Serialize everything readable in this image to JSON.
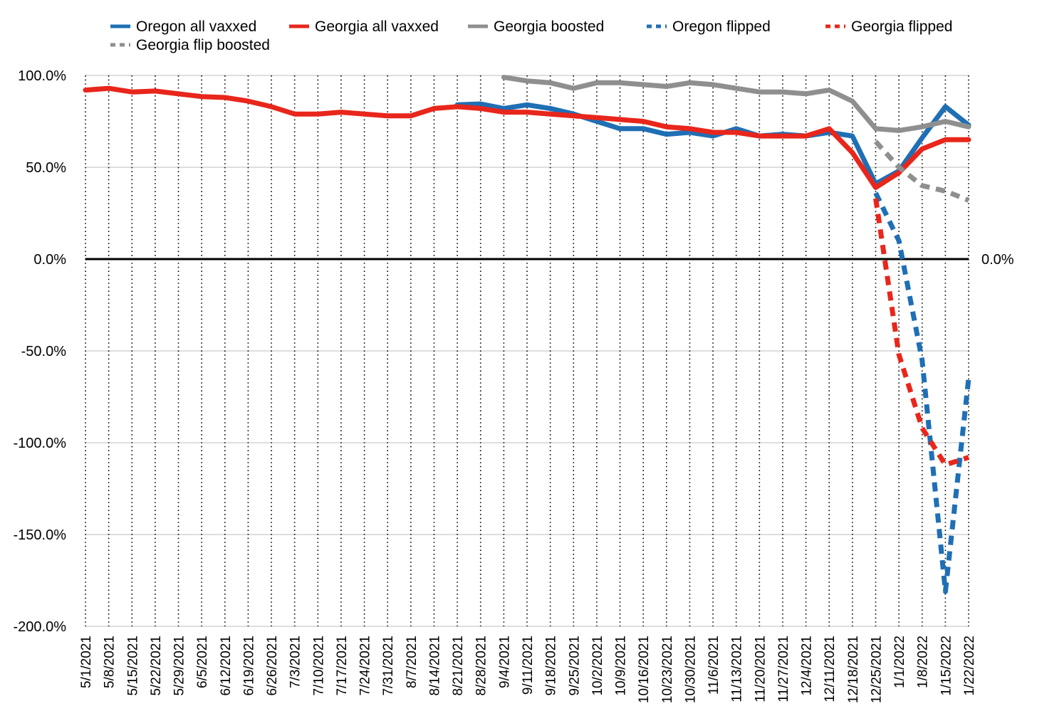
{
  "chart_data": {
    "type": "line",
    "title": "",
    "xlabel": "",
    "ylabel": "",
    "ylim": [
      -200,
      100
    ],
    "yticks": [
      100,
      50,
      0,
      -50,
      -100,
      -150,
      -200
    ],
    "ytick_labels": [
      "100.0%",
      "50.0%",
      "0.0%",
      "-50.0%",
      "-100.0%",
      "-150.0%",
      "-200.0%"
    ],
    "zero_right_label": "0.0%",
    "grid": {
      "horizontal": true,
      "vertical": "dotted"
    },
    "legend_position": "top",
    "x": [
      "5/1/2021",
      "5/8/2021",
      "5/15/2021",
      "5/22/2021",
      "5/29/2021",
      "6/5/2021",
      "6/12/2021",
      "6/19/2021",
      "6/26/2021",
      "7/3/2021",
      "7/10/2021",
      "7/17/2021",
      "7/24/2021",
      "7/31/2021",
      "8/7/2021",
      "8/14/2021",
      "8/21/2021",
      "8/28/2021",
      "9/4/2021",
      "9/11/2021",
      "9/18/2021",
      "9/25/2021",
      "10/2/2021",
      "10/9/2021",
      "10/16/2021",
      "10/23/2021",
      "10/30/2021",
      "11/6/2021",
      "11/13/2021",
      "11/20/2021",
      "11/27/2021",
      "12/4/2021",
      "12/11/2021",
      "12/18/2021",
      "12/25/2021",
      "1/1/2022",
      "1/8/2022",
      "1/15/2022",
      "1/22/2022"
    ],
    "series": [
      {
        "name": "Oregon all vaxxed",
        "color": "#1f6fb5",
        "dash": false,
        "values": [
          null,
          null,
          null,
          null,
          null,
          null,
          null,
          null,
          null,
          null,
          null,
          null,
          null,
          null,
          null,
          null,
          84,
          84.5,
          82,
          84,
          82,
          79,
          75,
          71,
          71,
          68,
          69,
          67,
          71,
          67,
          68,
          67,
          69,
          67,
          41,
          48,
          66,
          83,
          73
        ]
      },
      {
        "name": "Georgia all vaxxed",
        "color": "#e8261b",
        "dash": false,
        "values": [
          92,
          93,
          91,
          91.5,
          90,
          88.5,
          88,
          86,
          83,
          79,
          79,
          80,
          79,
          78,
          78,
          82,
          83,
          82,
          80,
          80,
          79,
          78,
          77,
          76,
          75,
          72,
          71,
          69,
          69,
          67,
          67,
          67,
          71,
          58,
          39,
          47,
          60,
          65,
          65
        ]
      },
      {
        "name": "Georgia boosted",
        "color": "#8f8f8f",
        "dash": false,
        "values": [
          null,
          null,
          null,
          null,
          null,
          null,
          null,
          null,
          null,
          null,
          null,
          null,
          null,
          null,
          null,
          null,
          null,
          null,
          99,
          97,
          96,
          93,
          96,
          96,
          95,
          94,
          96,
          95,
          93,
          91,
          91,
          90,
          92,
          86,
          71,
          70,
          72,
          75,
          72
        ]
      },
      {
        "name": "Oregon flipped",
        "color": "#1f6fb5",
        "dash": true,
        "values": [
          null,
          null,
          null,
          null,
          null,
          null,
          null,
          null,
          null,
          null,
          null,
          null,
          null,
          null,
          null,
          null,
          null,
          null,
          null,
          null,
          null,
          null,
          null,
          null,
          null,
          null,
          null,
          null,
          null,
          null,
          null,
          null,
          null,
          null,
          36,
          10,
          -55,
          -181,
          -65
        ]
      },
      {
        "name": "Georgia flipped",
        "color": "#e8261b",
        "dash": true,
        "values": [
          null,
          null,
          null,
          null,
          null,
          null,
          null,
          null,
          null,
          null,
          null,
          null,
          null,
          null,
          null,
          null,
          null,
          null,
          null,
          null,
          null,
          null,
          null,
          null,
          null,
          null,
          null,
          null,
          null,
          null,
          null,
          null,
          null,
          null,
          33,
          -52,
          -92,
          -112,
          -108
        ]
      },
      {
        "name": "Georgia flip boosted",
        "color": "#8f8f8f",
        "dash": true,
        "values": [
          null,
          null,
          null,
          null,
          null,
          null,
          null,
          null,
          null,
          null,
          null,
          null,
          null,
          null,
          null,
          null,
          null,
          null,
          null,
          null,
          null,
          null,
          null,
          null,
          null,
          null,
          null,
          null,
          null,
          null,
          null,
          null,
          null,
          null,
          64,
          50,
          40,
          37,
          32
        ]
      }
    ]
  }
}
